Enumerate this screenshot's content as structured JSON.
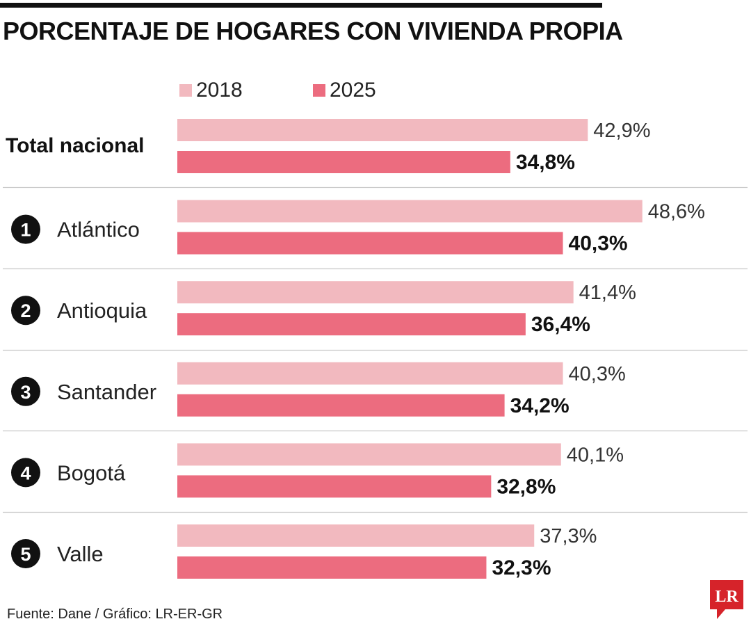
{
  "title": "PORCENTAJE DE HOGARES CON VIVIENDA PROPIA",
  "legend": [
    {
      "label": "2018",
      "color": "#f2b9bf"
    },
    {
      "label": "2025",
      "color": "#ec6c7f"
    }
  ],
  "chart_data": {
    "type": "bar",
    "orientation": "horizontal",
    "title": "PORCENTAJE DE HOGARES CON VIVIENDA PROPIA",
    "categories": [
      {
        "rank": "",
        "label": "Total nacional"
      },
      {
        "rank": "1",
        "label": "Atlántico"
      },
      {
        "rank": "2",
        "label": "Antioquia"
      },
      {
        "rank": "3",
        "label": "Santander"
      },
      {
        "rank": "4",
        "label": "Bogotá"
      },
      {
        "rank": "5",
        "label": "Valle"
      }
    ],
    "series": [
      {
        "name": "2018",
        "color": "#f2b9bf",
        "values": [
          42.9,
          48.6,
          41.4,
          40.3,
          40.1,
          37.3
        ],
        "labels": [
          "42,9%",
          "48,6%",
          "41,4%",
          "40,3%",
          "40,1%",
          "37,3%"
        ]
      },
      {
        "name": "2025",
        "color": "#ec6c7f",
        "values": [
          34.8,
          40.3,
          36.4,
          34.2,
          32.8,
          32.3
        ],
        "labels": [
          "34,8%",
          "40,3%",
          "36,4%",
          "34,2%",
          "32,8%",
          "32,3%"
        ]
      }
    ],
    "grid": false,
    "legend_position": "top-left"
  },
  "footer": "Fuente: Dane / Gráfico: LR-ER-GR",
  "logo_text": "LR",
  "logo_color": "#d6232a"
}
